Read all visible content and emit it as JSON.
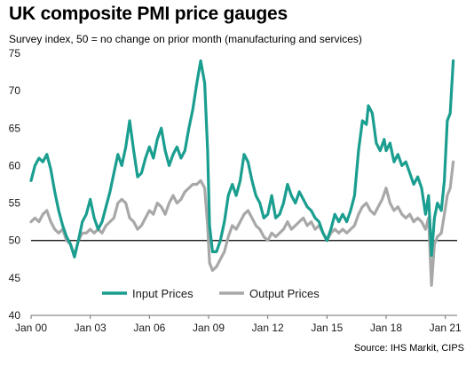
{
  "title": "UK composite PMI price gauges",
  "subtitle": "Survey index, 50 = no change on prior month (manufacturing and services)",
  "source": "Source: IHS Markit, CIPS",
  "chart_data": {
    "type": "line",
    "title": "UK composite PMI price gauges",
    "subtitle": "Survey index, 50 = no change on prior month (manufacturing and services)",
    "ylim": [
      40,
      75
    ],
    "yticks": [
      40,
      45,
      50,
      55,
      60,
      65,
      70,
      75
    ],
    "xlim": [
      2000.0,
      2021.6
    ],
    "xticks": [
      {
        "x": 2000,
        "label": "Jan 00"
      },
      {
        "x": 2003,
        "label": "Jan 03"
      },
      {
        "x": 2006,
        "label": "Jan 06"
      },
      {
        "x": 2009,
        "label": "Jan 09"
      },
      {
        "x": 2012,
        "label": "Jan 12"
      },
      {
        "x": 2015,
        "label": "Jan 15"
      },
      {
        "x": 2018,
        "label": "Jan 18"
      },
      {
        "x": 2021,
        "label": "Jan 21"
      }
    ],
    "reference_line": 50,
    "grid": false,
    "legend_position": "bottom-center",
    "series": [
      {
        "name": "Input Prices",
        "color": "#1a9e8f",
        "points": [
          [
            2000.0,
            58.0
          ],
          [
            2000.2,
            60.0
          ],
          [
            2000.4,
            61.0
          ],
          [
            2000.6,
            60.5
          ],
          [
            2000.8,
            61.5
          ],
          [
            2001.0,
            59.5
          ],
          [
            2001.2,
            56.5
          ],
          [
            2001.4,
            54.0
          ],
          [
            2001.6,
            52.0
          ],
          [
            2001.8,
            50.5
          ],
          [
            2002.0,
            49.5
          ],
          [
            2002.2,
            47.8
          ],
          [
            2002.4,
            50.0
          ],
          [
            2002.6,
            52.5
          ],
          [
            2002.8,
            53.5
          ],
          [
            2003.0,
            55.5
          ],
          [
            2003.2,
            53.0
          ],
          [
            2003.4,
            51.5
          ],
          [
            2003.6,
            52.5
          ],
          [
            2003.8,
            54.5
          ],
          [
            2004.0,
            56.5
          ],
          [
            2004.2,
            59.0
          ],
          [
            2004.4,
            61.5
          ],
          [
            2004.6,
            60.0
          ],
          [
            2004.8,
            62.5
          ],
          [
            2005.0,
            66.0
          ],
          [
            2005.2,
            62.0
          ],
          [
            2005.4,
            58.5
          ],
          [
            2005.6,
            59.0
          ],
          [
            2005.8,
            61.0
          ],
          [
            2006.0,
            62.5
          ],
          [
            2006.2,
            61.0
          ],
          [
            2006.4,
            63.5
          ],
          [
            2006.6,
            65.0
          ],
          [
            2006.8,
            62.0
          ],
          [
            2007.0,
            60.0
          ],
          [
            2007.2,
            61.5
          ],
          [
            2007.4,
            62.5
          ],
          [
            2007.6,
            61.0
          ],
          [
            2007.8,
            62.0
          ],
          [
            2008.0,
            65.0
          ],
          [
            2008.2,
            67.5
          ],
          [
            2008.4,
            71.0
          ],
          [
            2008.6,
            74.0
          ],
          [
            2008.8,
            71.0
          ],
          [
            2008.95,
            62.0
          ],
          [
            2009.05,
            52.0
          ],
          [
            2009.2,
            48.5
          ],
          [
            2009.4,
            48.5
          ],
          [
            2009.6,
            50.0
          ],
          [
            2009.8,
            52.5
          ],
          [
            2010.0,
            56.0
          ],
          [
            2010.2,
            57.5
          ],
          [
            2010.4,
            56.0
          ],
          [
            2010.6,
            58.0
          ],
          [
            2010.8,
            61.5
          ],
          [
            2011.0,
            60.5
          ],
          [
            2011.2,
            58.0
          ],
          [
            2011.4,
            56.0
          ],
          [
            2011.6,
            55.0
          ],
          [
            2011.8,
            53.0
          ],
          [
            2012.0,
            53.5
          ],
          [
            2012.2,
            56.0
          ],
          [
            2012.4,
            53.0
          ],
          [
            2012.6,
            53.5
          ],
          [
            2012.8,
            55.0
          ],
          [
            2013.0,
            57.5
          ],
          [
            2013.2,
            56.0
          ],
          [
            2013.4,
            55.0
          ],
          [
            2013.6,
            56.5
          ],
          [
            2013.8,
            55.5
          ],
          [
            2014.0,
            54.5
          ],
          [
            2014.2,
            54.0
          ],
          [
            2014.4,
            53.0
          ],
          [
            2014.6,
            52.5
          ],
          [
            2014.8,
            51.0
          ],
          [
            2015.0,
            50.0
          ],
          [
            2015.2,
            51.5
          ],
          [
            2015.4,
            53.5
          ],
          [
            2015.6,
            52.5
          ],
          [
            2015.8,
            53.5
          ],
          [
            2016.0,
            52.5
          ],
          [
            2016.2,
            54.0
          ],
          [
            2016.4,
            56.0
          ],
          [
            2016.6,
            62.0
          ],
          [
            2016.8,
            66.0
          ],
          [
            2017.0,
            65.5
          ],
          [
            2017.1,
            68.0
          ],
          [
            2017.3,
            67.0
          ],
          [
            2017.5,
            63.0
          ],
          [
            2017.7,
            62.0
          ],
          [
            2017.9,
            63.5
          ],
          [
            2018.0,
            62.0
          ],
          [
            2018.2,
            63.0
          ],
          [
            2018.4,
            60.5
          ],
          [
            2018.6,
            61.5
          ],
          [
            2018.8,
            60.0
          ],
          [
            2019.0,
            60.5
          ],
          [
            2019.2,
            59.0
          ],
          [
            2019.4,
            57.5
          ],
          [
            2019.6,
            58.5
          ],
          [
            2019.8,
            57.0
          ],
          [
            2020.0,
            53.5
          ],
          [
            2020.15,
            56.0
          ],
          [
            2020.3,
            48.0
          ],
          [
            2020.45,
            53.0
          ],
          [
            2020.6,
            55.0
          ],
          [
            2020.8,
            54.0
          ],
          [
            2020.95,
            58.0
          ],
          [
            2021.1,
            66.0
          ],
          [
            2021.25,
            67.0
          ],
          [
            2021.4,
            74.0
          ]
        ]
      },
      {
        "name": "Output Prices",
        "color": "#a8a8a8",
        "points": [
          [
            2000.0,
            52.5
          ],
          [
            2000.2,
            53.0
          ],
          [
            2000.4,
            52.5
          ],
          [
            2000.6,
            53.5
          ],
          [
            2000.8,
            54.0
          ],
          [
            2001.0,
            52.5
          ],
          [
            2001.2,
            51.5
          ],
          [
            2001.4,
            51.0
          ],
          [
            2001.6,
            51.5
          ],
          [
            2001.8,
            50.0
          ],
          [
            2002.0,
            49.5
          ],
          [
            2002.2,
            48.0
          ],
          [
            2002.4,
            50.0
          ],
          [
            2002.6,
            51.0
          ],
          [
            2002.8,
            51.0
          ],
          [
            2003.0,
            51.5
          ],
          [
            2003.2,
            51.0
          ],
          [
            2003.4,
            51.5
          ],
          [
            2003.6,
            51.0
          ],
          [
            2003.8,
            52.0
          ],
          [
            2004.0,
            52.5
          ],
          [
            2004.2,
            53.0
          ],
          [
            2004.4,
            55.0
          ],
          [
            2004.6,
            55.5
          ],
          [
            2004.8,
            55.0
          ],
          [
            2005.0,
            53.0
          ],
          [
            2005.2,
            52.5
          ],
          [
            2005.4,
            51.5
          ],
          [
            2005.6,
            52.0
          ],
          [
            2005.8,
            53.0
          ],
          [
            2006.0,
            54.0
          ],
          [
            2006.2,
            53.5
          ],
          [
            2006.4,
            55.0
          ],
          [
            2006.6,
            54.5
          ],
          [
            2006.8,
            53.5
          ],
          [
            2007.0,
            55.0
          ],
          [
            2007.2,
            56.0
          ],
          [
            2007.4,
            55.0
          ],
          [
            2007.6,
            55.5
          ],
          [
            2007.8,
            56.5
          ],
          [
            2008.0,
            57.0
          ],
          [
            2008.2,
            57.5
          ],
          [
            2008.4,
            57.5
          ],
          [
            2008.6,
            58.0
          ],
          [
            2008.8,
            57.0
          ],
          [
            2008.95,
            52.0
          ],
          [
            2009.05,
            47.0
          ],
          [
            2009.2,
            46.0
          ],
          [
            2009.4,
            46.5
          ],
          [
            2009.6,
            47.5
          ],
          [
            2009.8,
            48.5
          ],
          [
            2010.0,
            50.5
          ],
          [
            2010.2,
            52.0
          ],
          [
            2010.4,
            51.5
          ],
          [
            2010.6,
            52.5
          ],
          [
            2010.8,
            53.5
          ],
          [
            2011.0,
            54.0
          ],
          [
            2011.2,
            53.0
          ],
          [
            2011.4,
            52.0
          ],
          [
            2011.6,
            51.5
          ],
          [
            2011.8,
            50.5
          ],
          [
            2012.0,
            50.0
          ],
          [
            2012.2,
            51.0
          ],
          [
            2012.4,
            50.5
          ],
          [
            2012.6,
            51.0
          ],
          [
            2012.8,
            51.5
          ],
          [
            2013.0,
            52.5
          ],
          [
            2013.2,
            51.5
          ],
          [
            2013.4,
            52.0
          ],
          [
            2013.6,
            52.5
          ],
          [
            2013.8,
            53.0
          ],
          [
            2014.0,
            52.0
          ],
          [
            2014.2,
            52.5
          ],
          [
            2014.4,
            51.5
          ],
          [
            2014.6,
            52.0
          ],
          [
            2014.8,
            51.0
          ],
          [
            2015.0,
            50.0
          ],
          [
            2015.2,
            51.0
          ],
          [
            2015.4,
            51.5
          ],
          [
            2015.6,
            51.0
          ],
          [
            2015.8,
            51.5
          ],
          [
            2016.0,
            51.0
          ],
          [
            2016.2,
            51.5
          ],
          [
            2016.4,
            52.0
          ],
          [
            2016.6,
            53.5
          ],
          [
            2016.8,
            54.5
          ],
          [
            2017.0,
            55.0
          ],
          [
            2017.2,
            54.0
          ],
          [
            2017.4,
            53.5
          ],
          [
            2017.6,
            54.5
          ],
          [
            2017.8,
            55.5
          ],
          [
            2018.0,
            57.0
          ],
          [
            2018.2,
            55.0
          ],
          [
            2018.4,
            54.0
          ],
          [
            2018.6,
            54.5
          ],
          [
            2018.8,
            53.5
          ],
          [
            2019.0,
            53.0
          ],
          [
            2019.2,
            53.5
          ],
          [
            2019.4,
            52.5
          ],
          [
            2019.6,
            53.0
          ],
          [
            2019.8,
            52.5
          ],
          [
            2020.0,
            51.5
          ],
          [
            2020.15,
            53.0
          ],
          [
            2020.3,
            44.0
          ],
          [
            2020.45,
            49.5
          ],
          [
            2020.6,
            50.5
          ],
          [
            2020.8,
            51.0
          ],
          [
            2020.95,
            53.5
          ],
          [
            2021.1,
            56.0
          ],
          [
            2021.25,
            57.0
          ],
          [
            2021.4,
            60.5
          ]
        ]
      }
    ]
  }
}
